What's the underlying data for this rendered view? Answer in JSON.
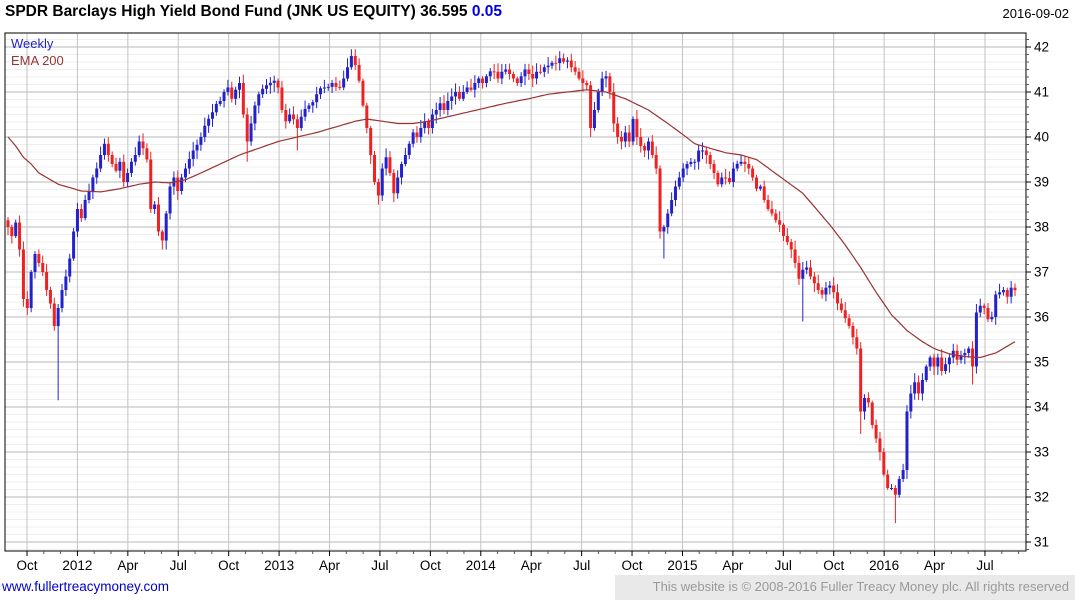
{
  "header": {
    "title": "SPDR Barclays High Yield Bond Fund (JNK US EQUITY)",
    "price": "36.595",
    "change": "0.05",
    "date": "2016-09-02"
  },
  "legend": {
    "timeframe": "Weekly",
    "overlay": "EMA 200"
  },
  "footer": {
    "link": "www.fullertreacymoney.com",
    "copyright": "This website is © 2008-2016 Fuller Treacy Money plc. All rights reserved"
  },
  "colors": {
    "up": "#2222cc",
    "down": "#ee2222",
    "ema": "#993333",
    "grid_major": "#b9b9b9",
    "grid_minor": "#efefef",
    "grid_vertical": "#c3c3c3",
    "frame": "#000000",
    "axis_text": "#000000"
  },
  "chart_data": {
    "type": "candlestick",
    "timeframe": "weekly",
    "instrument": "JNK US EQUITY",
    "title": "SPDR Barclays High Yield Bond Fund (JNK US EQUITY)",
    "last_close": 36.595,
    "change": 0.05,
    "weeks": 262,
    "y_axis": {
      "side": "right",
      "min": 31,
      "max": 42,
      "tick_step": 1,
      "minor_per_unit": 6
    },
    "x_axis": {
      "labels": [
        "Oct",
        "2012",
        "Apr",
        "Jul",
        "Oct",
        "2013",
        "Apr",
        "Jul",
        "Oct",
        "2014",
        "Apr",
        "Jul",
        "Oct",
        "2015",
        "Apr",
        "Jul",
        "Oct",
        "2016",
        "Apr",
        "Jul"
      ]
    },
    "series": [
      {
        "name": "Weekly",
        "role": "price"
      },
      {
        "name": "EMA 200",
        "role": "overlay"
      }
    ],
    "close_keypoints": [
      [
        0,
        38.0
      ],
      [
        1,
        37.8
      ],
      [
        2,
        38.1
      ],
      [
        3,
        37.5
      ],
      [
        4,
        36.4
      ],
      [
        5,
        36.2
      ],
      [
        6,
        37.0
      ],
      [
        7,
        37.4
      ],
      [
        8,
        37.2
      ],
      [
        9,
        37.0
      ],
      [
        10,
        36.6
      ],
      [
        11,
        36.3
      ],
      [
        12,
        35.8
      ],
      [
        13,
        36.2
      ],
      [
        14,
        36.6
      ],
      [
        15,
        36.9
      ],
      [
        16,
        37.3
      ],
      [
        17,
        37.9
      ],
      [
        18,
        38.4
      ],
      [
        19,
        38.2
      ],
      [
        20,
        38.6
      ],
      [
        21,
        38.8
      ],
      [
        22,
        39.1
      ],
      [
        23,
        39.3
      ],
      [
        24,
        39.6
      ],
      [
        25,
        39.85
      ],
      [
        26,
        39.6
      ],
      [
        27,
        39.4
      ],
      [
        28,
        39.25
      ],
      [
        29,
        39.45
      ],
      [
        30,
        39.0
      ],
      [
        31,
        39.2
      ],
      [
        32,
        39.45
      ],
      [
        33,
        39.6
      ],
      [
        34,
        39.9
      ],
      [
        35,
        39.75
      ],
      [
        36,
        39.5
      ],
      [
        37,
        38.4
      ],
      [
        38,
        38.5
      ],
      [
        39,
        37.9
      ],
      [
        40,
        37.7
      ],
      [
        41,
        38.3
      ],
      [
        42,
        38.9
      ],
      [
        43,
        39.1
      ],
      [
        44,
        38.8
      ],
      [
        45,
        39.1
      ],
      [
        46,
        39.3
      ],
      [
        48,
        39.7
      ],
      [
        50,
        40.0
      ],
      [
        51,
        40.25
      ],
      [
        53,
        40.55
      ],
      [
        55,
        40.8
      ],
      [
        56,
        41.0
      ],
      [
        57,
        41.1
      ],
      [
        58,
        40.85
      ],
      [
        59,
        41.05
      ],
      [
        60,
        41.2
      ],
      [
        61,
        40.5
      ],
      [
        62,
        39.9
      ],
      [
        63,
        40.3
      ],
      [
        64,
        40.7
      ],
      [
        65,
        40.95
      ],
      [
        67,
        41.15
      ],
      [
        69,
        41.25
      ],
      [
        70,
        41.1
      ],
      [
        71,
        40.6
      ],
      [
        72,
        40.35
      ],
      [
        73,
        40.5
      ],
      [
        75,
        40.2
      ],
      [
        76,
        40.45
      ],
      [
        78,
        40.7
      ],
      [
        80,
        40.95
      ],
      [
        82,
        41.1
      ],
      [
        84,
        41.2
      ],
      [
        86,
        41.1
      ],
      [
        87,
        41.3
      ],
      [
        88,
        41.55
      ],
      [
        89,
        41.8
      ],
      [
        90,
        41.6
      ],
      [
        91,
        41.25
      ],
      [
        92,
        40.7
      ],
      [
        93,
        40.2
      ],
      [
        94,
        39.6
      ],
      [
        95,
        39.0
      ],
      [
        96,
        38.7
      ],
      [
        97,
        39.3
      ],
      [
        98,
        39.55
      ],
      [
        99,
        39.2
      ],
      [
        100,
        38.75
      ],
      [
        101,
        39.1
      ],
      [
        102,
        39.4
      ],
      [
        103,
        39.6
      ],
      [
        104,
        39.85
      ],
      [
        105,
        40.1
      ],
      [
        106,
        40.0
      ],
      [
        107,
        40.2
      ],
      [
        108,
        40.35
      ],
      [
        109,
        40.2
      ],
      [
        110,
        40.5
      ],
      [
        111,
        40.6
      ],
      [
        112,
        40.75
      ],
      [
        113,
        40.6
      ],
      [
        114,
        40.8
      ],
      [
        115,
        40.9
      ],
      [
        116,
        41.0
      ],
      [
        117,
        40.85
      ],
      [
        118,
        41.0
      ],
      [
        119,
        41.1
      ],
      [
        120,
        41.05
      ],
      [
        121,
        41.2
      ],
      [
        122,
        41.3
      ],
      [
        123,
        41.2
      ],
      [
        124,
        41.35
      ],
      [
        126,
        41.45
      ],
      [
        127,
        41.3
      ],
      [
        128,
        41.45
      ],
      [
        129,
        41.5
      ],
      [
        130,
        41.4
      ],
      [
        131,
        41.3
      ],
      [
        132,
        41.2
      ],
      [
        133,
        41.35
      ],
      [
        134,
        41.5
      ],
      [
        135,
        41.4
      ],
      [
        136,
        41.3
      ],
      [
        137,
        41.45
      ],
      [
        139,
        41.55
      ],
      [
        141,
        41.65
      ],
      [
        143,
        41.75
      ],
      [
        145,
        41.7
      ],
      [
        146,
        41.55
      ],
      [
        147,
        41.45
      ],
      [
        148,
        41.3
      ],
      [
        149,
        41.2
      ],
      [
        150,
        41.15
      ],
      [
        151,
        40.2
      ],
      [
        152,
        40.6
      ],
      [
        153,
        41.0
      ],
      [
        154,
        41.3
      ],
      [
        155,
        41.35
      ],
      [
        156,
        41.0
      ],
      [
        157,
        40.3
      ],
      [
        158,
        40.0
      ],
      [
        159,
        39.9
      ],
      [
        160,
        40.1
      ],
      [
        161,
        39.9
      ],
      [
        162,
        40.4
      ],
      [
        163,
        40.0
      ],
      [
        164,
        39.8
      ],
      [
        165,
        39.7
      ],
      [
        166,
        39.9
      ],
      [
        167,
        39.6
      ],
      [
        168,
        39.3
      ],
      [
        169,
        37.9
      ],
      [
        170,
        38.0
      ],
      [
        171,
        38.3
      ],
      [
        172,
        38.6
      ],
      [
        173,
        38.9
      ],
      [
        174,
        39.1
      ],
      [
        175,
        39.3
      ],
      [
        176,
        39.4
      ],
      [
        178,
        39.45
      ],
      [
        179,
        39.7
      ],
      [
        181,
        39.6
      ],
      [
        182,
        39.4
      ],
      [
        183,
        39.2
      ],
      [
        184,
        38.95
      ],
      [
        185,
        39.1
      ],
      [
        187,
        39.0
      ],
      [
        188,
        39.3
      ],
      [
        190,
        39.45
      ],
      [
        191,
        39.4
      ],
      [
        192,
        39.3
      ],
      [
        193,
        39.1
      ],
      [
        194,
        38.85
      ],
      [
        195,
        38.9
      ],
      [
        196,
        38.6
      ],
      [
        198,
        38.3
      ],
      [
        199,
        38.15
      ],
      [
        200,
        38.05
      ],
      [
        201,
        37.8
      ],
      [
        203,
        37.5
      ],
      [
        204,
        37.2
      ],
      [
        205,
        36.85
      ],
      [
        206,
        37.05
      ],
      [
        207,
        37.1
      ],
      [
        208,
        36.9
      ],
      [
        209,
        36.75
      ],
      [
        210,
        36.6
      ],
      [
        211,
        36.5
      ],
      [
        212,
        36.65
      ],
      [
        213,
        36.7
      ],
      [
        214,
        36.55
      ],
      [
        215,
        36.3
      ],
      [
        216,
        36.15
      ],
      [
        218,
        35.8
      ],
      [
        219,
        35.55
      ],
      [
        220,
        35.3
      ],
      [
        221,
        33.9
      ],
      [
        222,
        34.2
      ],
      [
        223,
        34.1
      ],
      [
        224,
        33.6
      ],
      [
        225,
        33.3
      ],
      [
        226,
        33.0
      ],
      [
        227,
        32.5
      ],
      [
        228,
        32.2
      ],
      [
        229,
        32.2
      ],
      [
        230,
        32.05
      ],
      [
        231,
        32.4
      ],
      [
        232,
        32.6
      ],
      [
        233,
        33.9
      ],
      [
        234,
        34.3
      ],
      [
        235,
        34.55
      ],
      [
        236,
        34.3
      ],
      [
        237,
        34.6
      ],
      [
        238,
        34.9
      ],
      [
        239,
        35.1
      ],
      [
        240,
        34.9
      ],
      [
        241,
        35.1
      ],
      [
        242,
        34.8
      ],
      [
        243,
        34.95
      ],
      [
        244,
        35.1
      ],
      [
        245,
        35.25
      ],
      [
        246,
        35.05
      ],
      [
        247,
        35.15
      ],
      [
        248,
        35.2
      ],
      [
        249,
        35.3
      ],
      [
        250,
        34.9
      ],
      [
        251,
        36.1
      ],
      [
        252,
        36.25
      ],
      [
        253,
        36.2
      ],
      [
        254,
        35.95
      ],
      [
        255,
        36.0
      ],
      [
        256,
        36.5
      ],
      [
        257,
        36.55
      ],
      [
        258,
        36.6
      ],
      [
        259,
        36.45
      ],
      [
        260,
        36.65
      ],
      [
        261,
        36.595
      ]
    ],
    "wick_overrides": [
      {
        "week": 13,
        "low": 34.15
      },
      {
        "week": 40,
        "low": 37.5
      },
      {
        "week": 62,
        "low": 39.45
      },
      {
        "week": 75,
        "low": 39.7
      },
      {
        "week": 89,
        "high": 41.95
      },
      {
        "week": 96,
        "low": 38.5
      },
      {
        "week": 100,
        "low": 38.55
      },
      {
        "week": 151,
        "low": 40.0
      },
      {
        "week": 170,
        "low": 37.3
      },
      {
        "week": 206,
        "low": 35.9
      },
      {
        "week": 221,
        "low": 33.4
      },
      {
        "week": 230,
        "low": 31.42
      },
      {
        "week": 235,
        "high": 34.75
      },
      {
        "week": 250,
        "low": 34.5
      },
      {
        "week": 260,
        "high": 36.8
      }
    ],
    "ema_keypoints": [
      [
        0,
        40.0
      ],
      [
        2,
        39.8
      ],
      [
        4,
        39.55
      ],
      [
        6,
        39.4
      ],
      [
        8,
        39.2
      ],
      [
        13,
        38.95
      ],
      [
        19,
        38.8
      ],
      [
        24,
        38.78
      ],
      [
        29,
        38.85
      ],
      [
        34,
        38.95
      ],
      [
        38,
        39.0
      ],
      [
        42,
        38.98
      ],
      [
        46,
        39.05
      ],
      [
        50,
        39.2
      ],
      [
        55,
        39.4
      ],
      [
        60,
        39.6
      ],
      [
        65,
        39.75
      ],
      [
        70,
        39.9
      ],
      [
        75,
        40.0
      ],
      [
        80,
        40.1
      ],
      [
        86,
        40.25
      ],
      [
        90,
        40.35
      ],
      [
        93,
        40.4
      ],
      [
        97,
        40.35
      ],
      [
        101,
        40.3
      ],
      [
        105,
        40.3
      ],
      [
        109,
        40.35
      ],
      [
        114,
        40.45
      ],
      [
        119,
        40.55
      ],
      [
        124,
        40.65
      ],
      [
        129,
        40.75
      ],
      [
        135,
        40.85
      ],
      [
        140,
        40.95
      ],
      [
        145,
        41.0
      ],
      [
        150,
        41.05
      ],
      [
        155,
        41.0
      ],
      [
        160,
        40.85
      ],
      [
        166,
        40.6
      ],
      [
        171,
        40.3
      ],
      [
        175,
        40.05
      ],
      [
        178,
        39.85
      ],
      [
        182,
        39.75
      ],
      [
        186,
        39.65
      ],
      [
        190,
        39.6
      ],
      [
        194,
        39.5
      ],
      [
        198,
        39.25
      ],
      [
        202,
        39.0
      ],
      [
        206,
        38.75
      ],
      [
        209,
        38.45
      ],
      [
        213,
        38.05
      ],
      [
        217,
        37.6
      ],
      [
        221,
        37.1
      ],
      [
        225,
        36.55
      ],
      [
        229,
        36.05
      ],
      [
        233,
        35.7
      ],
      [
        237,
        35.45
      ],
      [
        240,
        35.3
      ],
      [
        244,
        35.18
      ],
      [
        248,
        35.12
      ],
      [
        252,
        35.1
      ],
      [
        256,
        35.2
      ],
      [
        259,
        35.35
      ],
      [
        261,
        35.45
      ]
    ]
  }
}
